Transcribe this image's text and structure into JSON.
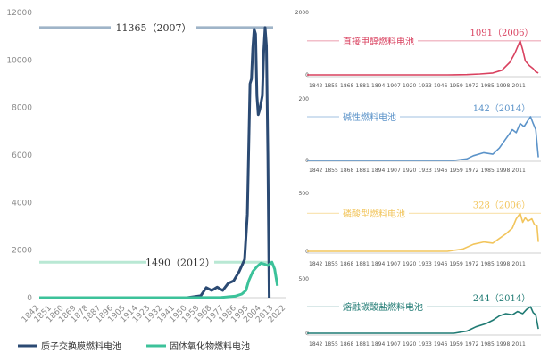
{
  "chart_data": [
    {
      "type": "line",
      "x_tick_labels": [
        "1842",
        "1851",
        "1860",
        "1869",
        "1878",
        "1887",
        "1896",
        "1905",
        "1914",
        "1923",
        "1932",
        "1941",
        "1950",
        "1959",
        "1968",
        "1977",
        "1986",
        "1995",
        "2004",
        "2013",
        "2022"
      ],
      "ylim": [
        0,
        12000
      ],
      "y_ticks": [
        "0",
        "2000",
        "4000",
        "6000",
        "8000",
        "10000",
        "12000"
      ],
      "series": [
        {
          "name": "质子交换膜燃料电池",
          "color": "#2b4a73",
          "points": [
            [
              1842,
              0
            ],
            [
              1900,
              0
            ],
            [
              1950,
              0
            ],
            [
              1960,
              80
            ],
            [
              1964,
              420
            ],
            [
              1968,
              300
            ],
            [
              1972,
              440
            ],
            [
              1976,
              300
            ],
            [
              1980,
              600
            ],
            [
              1984,
              700
            ],
            [
              1988,
              1100
            ],
            [
              1992,
              1600
            ],
            [
              1994,
              3500
            ],
            [
              1996,
              9000
            ],
            [
              1997,
              9200
            ],
            [
              1998,
              10500
            ],
            [
              1999,
              11300
            ],
            [
              2000,
              11100
            ],
            [
              2001,
              8500
            ],
            [
              2002,
              7700
            ],
            [
              2003,
              7900
            ],
            [
              2004,
              8200
            ],
            [
              2005,
              8500
            ],
            [
              2006,
              10400
            ],
            [
              2007,
              11365
            ],
            [
              2008,
              10600
            ],
            [
              2009,
              6000
            ],
            [
              2010,
              0
            ]
          ]
        },
        {
          "name": "固体氧化物燃料电池",
          "color": "#3cc29a",
          "points": [
            [
              1842,
              0
            ],
            [
              1950,
              0
            ],
            [
              1975,
              10
            ],
            [
              1985,
              60
            ],
            [
              1990,
              150
            ],
            [
              1993,
              300
            ],
            [
              1995,
              700
            ],
            [
              1998,
              1100
            ],
            [
              2001,
              1300
            ],
            [
              2004,
              1450
            ],
            [
              2007,
              1400
            ],
            [
              2009,
              1350
            ],
            [
              2012,
              1490
            ],
            [
              2014,
              1200
            ],
            [
              2016,
              500
            ]
          ]
        }
      ],
      "annotations": [
        {
          "text": "11365（2007）",
          "value": 11365
        },
        {
          "text": "1490（2012）",
          "value": 1490
        }
      ]
    },
    {
      "type": "line",
      "title": "直接甲醇燃料电池",
      "color": "#d9415f",
      "y_ticks": [
        "0",
        "2000"
      ],
      "ylim": [
        0,
        2000
      ],
      "peak_label": "1091（2006）",
      "peak_value": 1091,
      "x_tick_labels": [
        "1842",
        "1855",
        "1868",
        "1881",
        "1894",
        "1907",
        "1920",
        "1933",
        "1946",
        "1959",
        "1972",
        "1985",
        "1998",
        "2011"
      ],
      "points": [
        [
          1842,
          0
        ],
        [
          1950,
          0
        ],
        [
          1965,
          10
        ],
        [
          1975,
          30
        ],
        [
          1985,
          60
        ],
        [
          1992,
          150
        ],
        [
          1998,
          400
        ],
        [
          2002,
          700
        ],
        [
          2005,
          1000
        ],
        [
          2006,
          1091
        ],
        [
          2008,
          800
        ],
        [
          2010,
          450
        ],
        [
          2013,
          300
        ],
        [
          2016,
          200
        ],
        [
          2018,
          100
        ],
        [
          2020,
          60
        ]
      ]
    },
    {
      "type": "line",
      "title": "碱性燃料电池",
      "color": "#5b93c9",
      "y_ticks": [
        "0",
        "200"
      ],
      "ylim": [
        0,
        200
      ],
      "peak_label": "142（2014）",
      "peak_value": 142,
      "x_tick_labels": [
        "1842",
        "1855",
        "1868",
        "1881",
        "1894",
        "1907",
        "1920",
        "1933",
        "1946",
        "1959",
        "1972",
        "1985",
        "1998",
        "2011"
      ],
      "points": [
        [
          1842,
          0
        ],
        [
          1955,
          0
        ],
        [
          1965,
          5
        ],
        [
          1970,
          15
        ],
        [
          1978,
          25
        ],
        [
          1985,
          20
        ],
        [
          1990,
          40
        ],
        [
          1995,
          70
        ],
        [
          2000,
          100
        ],
        [
          2003,
          90
        ],
        [
          2006,
          120
        ],
        [
          2009,
          110
        ],
        [
          2012,
          130
        ],
        [
          2014,
          142
        ],
        [
          2016,
          120
        ],
        [
          2018,
          100
        ],
        [
          2020,
          10
        ]
      ]
    },
    {
      "type": "line",
      "title": "磷酸型燃料电池",
      "color": "#f2c55c",
      "y_ticks": [
        "0",
        "500"
      ],
      "ylim": [
        0,
        500
      ],
      "peak_label": "328（2006）",
      "peak_value": 328,
      "x_tick_labels": [
        "1842",
        "1855",
        "1868",
        "1881",
        "1894",
        "1907",
        "1920",
        "1933",
        "1946",
        "1959",
        "1972",
        "1985",
        "1998",
        "2011"
      ],
      "points": [
        [
          1842,
          0
        ],
        [
          1950,
          0
        ],
        [
          1962,
          20
        ],
        [
          1970,
          60
        ],
        [
          1978,
          80
        ],
        [
          1985,
          70
        ],
        [
          1990,
          110
        ],
        [
          1995,
          150
        ],
        [
          2000,
          200
        ],
        [
          2003,
          280
        ],
        [
          2006,
          328
        ],
        [
          2008,
          250
        ],
        [
          2010,
          290
        ],
        [
          2012,
          260
        ],
        [
          2015,
          280
        ],
        [
          2017,
          230
        ],
        [
          2019,
          220
        ],
        [
          2020,
          80
        ]
      ]
    },
    {
      "type": "line",
      "title": "熔融碳酸盐燃料电池",
      "color": "#1f7a73",
      "y_ticks": [
        "0",
        "500"
      ],
      "ylim": [
        0,
        500
      ],
      "peak_label": "244（2014）",
      "peak_value": 244,
      "x_tick_labels": [
        "1842",
        "1855",
        "1868",
        "1881",
        "1894",
        "1907",
        "1920",
        "1933",
        "1946",
        "1959",
        "1972",
        "1985",
        "1998",
        "2011"
      ],
      "points": [
        [
          1842,
          0
        ],
        [
          1955,
          0
        ],
        [
          1965,
          20
        ],
        [
          1972,
          60
        ],
        [
          1980,
          90
        ],
        [
          1985,
          120
        ],
        [
          1990,
          160
        ],
        [
          1995,
          180
        ],
        [
          2000,
          170
        ],
        [
          2004,
          200
        ],
        [
          2008,
          180
        ],
        [
          2011,
          220
        ],
        [
          2014,
          244
        ],
        [
          2016,
          190
        ],
        [
          2018,
          170
        ],
        [
          2020,
          40
        ]
      ]
    }
  ]
}
